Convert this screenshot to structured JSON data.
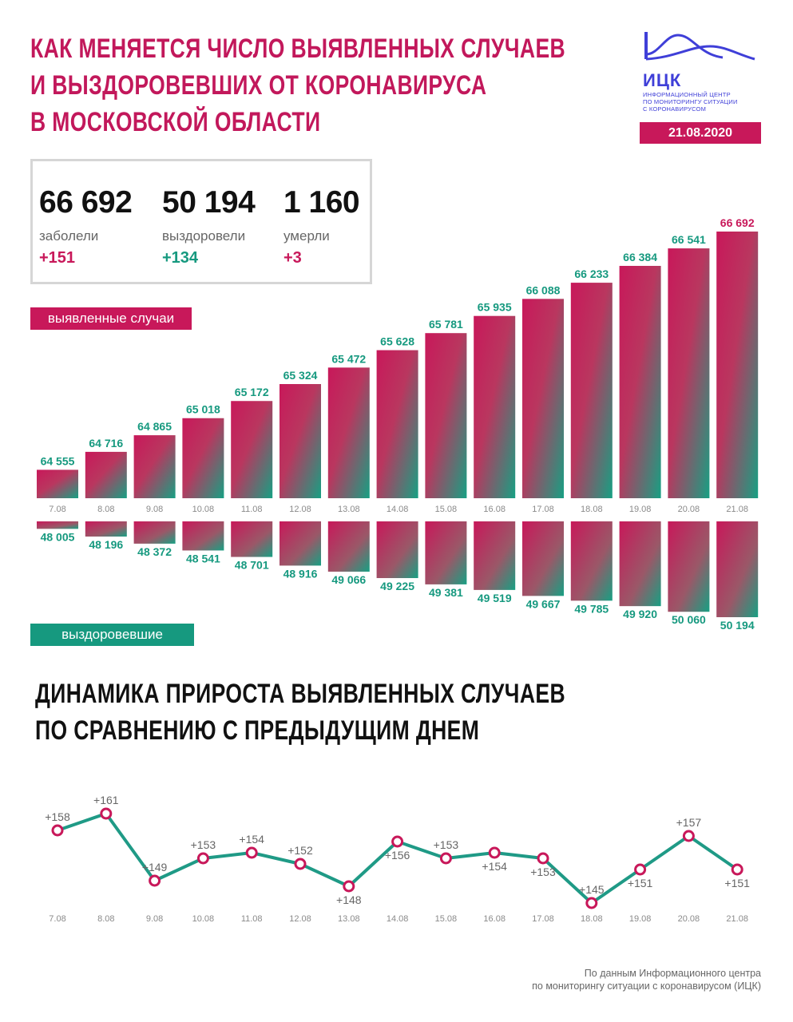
{
  "header": {
    "title_lines": [
      "КАК МЕНЯЕТСЯ ЧИСЛО ВЫЯВЛЕННЫХ СЛУЧАЕВ",
      "И ВЫЗДОРОВЕВШИХ ОТ КОРОНАВИРУСА",
      "В МОСКОВСКОЙ ОБЛАСТИ"
    ],
    "logo_abbr": "ИЦК",
    "logo_lines": [
      "ИНФОРМАЦИОННЫЙ ЦЕНТР",
      "ПО МОНИТОРИНГУ СИТУАЦИИ",
      "С КОРОНАВИРУСОМ"
    ],
    "date": "21.08.2020"
  },
  "stats": [
    {
      "value": "66 692",
      "label": "заболели",
      "delta": "+151"
    },
    {
      "value": "50 194",
      "label": "выздоровели",
      "delta": "+134"
    },
    {
      "value": "1 160",
      "label": "умерли",
      "delta": "+3"
    }
  ],
  "labels": {
    "cases_pill": "выявленные случаи",
    "recovered_pill": "выздоровевшие",
    "subtitle_lines": [
      "ДИНАМИКА ПРИРОСТА ВЫЯВЛЕННЫХ СЛУЧАЕВ",
      "ПО СРАВНЕНИЮ С ПРЕДЫДУЩИМ ДНЕМ"
    ]
  },
  "colors": {
    "accent_red": "#c8185a",
    "accent_teal": "#16997f",
    "logo_blue": "#3f3fd8"
  },
  "chart_data": [
    {
      "type": "bar",
      "name": "выявленные случаи",
      "categories": [
        "7.08",
        "8.08",
        "9.08",
        "10.08",
        "11.08",
        "12.08",
        "13.08",
        "14.08",
        "15.08",
        "16.08",
        "17.08",
        "18.08",
        "19.08",
        "20.08",
        "21.08"
      ],
      "values": [
        64555,
        64716,
        64865,
        65018,
        65172,
        65324,
        65472,
        65628,
        65781,
        65935,
        66088,
        66233,
        66384,
        66541,
        66692
      ],
      "value_labels": [
        "64 555",
        "64 716",
        "64 865",
        "65 018",
        "65 172",
        "65 324",
        "65 472",
        "65 628",
        "65 781",
        "65 935",
        "66 088",
        "66 233",
        "66 384",
        "66 541",
        "66 692"
      ]
    },
    {
      "type": "bar",
      "name": "выздоровевшие",
      "categories": [
        "7.08",
        "8.08",
        "9.08",
        "10.08",
        "11.08",
        "12.08",
        "13.08",
        "14.08",
        "15.08",
        "16.08",
        "17.08",
        "18.08",
        "19.08",
        "20.08",
        "21.08"
      ],
      "values": [
        48005,
        48196,
        48372,
        48541,
        48701,
        48916,
        49066,
        49225,
        49381,
        49519,
        49667,
        49785,
        49920,
        50060,
        50194
      ],
      "value_labels": [
        "48 005",
        "48 196",
        "48 372",
        "48 541",
        "48 701",
        "48 916",
        "49 066",
        "49 225",
        "49 381",
        "49 519",
        "49 667",
        "49 785",
        "49 920",
        "50 060",
        "50 194"
      ]
    },
    {
      "type": "line",
      "categories": [
        "7.08",
        "8.08",
        "9.08",
        "10.08",
        "11.08",
        "12.08",
        "13.08",
        "14.08",
        "15.08",
        "16.08",
        "17.08",
        "18.08",
        "19.08",
        "20.08",
        "21.08"
      ],
      "values": [
        158,
        161,
        149,
        153,
        154,
        152,
        148,
        156,
        153,
        154,
        153,
        145,
        151,
        157,
        151
      ],
      "value_labels": [
        "+158",
        "+161",
        "+149",
        "+153",
        "+154",
        "+152",
        "+148",
        "+156",
        "+153",
        "+154",
        "+153",
        "+145",
        "+151",
        "+157",
        "+151"
      ]
    }
  ],
  "footer": {
    "lines": [
      "По данным Информационного центра",
      "по мониторингу ситуации с коронавирусом (ИЦК)"
    ]
  }
}
